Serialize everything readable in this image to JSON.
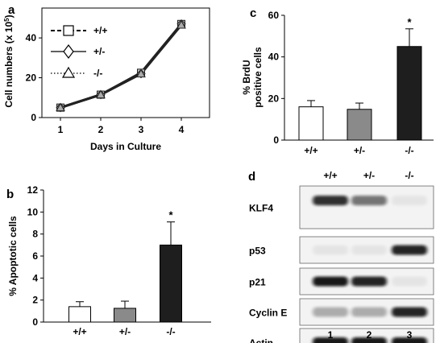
{
  "chart_data": [
    {
      "panel": "a",
      "type": "line",
      "xlabel": "Days in Culture",
      "ylabel": "Cell numbers (x 10",
      "ylabel_sup": "5",
      "ylabel_end": ")",
      "x": [
        1,
        2,
        3,
        4
      ],
      "ylim": [
        0,
        55
      ],
      "yticks": [
        0,
        20,
        40
      ],
      "series": [
        {
          "name": "+/+",
          "marker": "square",
          "dash": "dashed",
          "values": [
            5,
            11.5,
            22.5,
            47
          ]
        },
        {
          "name": "+/-",
          "marker": "diamond",
          "dash": "solid",
          "values": [
            5,
            11.5,
            22,
            47
          ]
        },
        {
          "name": "-/-",
          "marker": "triangle",
          "dash": "dotted",
          "values": [
            5,
            11.5,
            22,
            46.5
          ]
        }
      ]
    },
    {
      "panel": "b",
      "type": "bar",
      "ylabel": "% Apoptotic cells",
      "categories": [
        "+/+",
        "+/-",
        "-/-"
      ],
      "values": [
        1.4,
        1.25,
        7.0
      ],
      "errors": [
        0.45,
        0.65,
        2.1
      ],
      "colors": [
        "#ffffff",
        "#8a8a8a",
        "#1e1e1e"
      ],
      "significance": [
        "",
        "",
        "*"
      ],
      "ylim": [
        0,
        12
      ],
      "yticks": [
        0,
        2,
        4,
        6,
        8,
        10,
        12
      ]
    },
    {
      "panel": "c",
      "type": "bar",
      "ylabel": "% BrdU",
      "ylabel_line2": "positive cells",
      "categories": [
        "+/+",
        "+/-",
        "-/-"
      ],
      "values": [
        16,
        14.8,
        45
      ],
      "errors": [
        3,
        3,
        8.5
      ],
      "colors": [
        "#ffffff",
        "#8a8a8a",
        "#1e1e1e"
      ],
      "significance": [
        "",
        "",
        "*"
      ],
      "ylim": [
        0,
        60
      ],
      "yticks": [
        0,
        20,
        40,
        60
      ]
    }
  ],
  "blot": {
    "panel": "d",
    "genotypes": [
      "+/+",
      "+/-",
      "-/-"
    ],
    "lanes": [
      "1",
      "2",
      "3"
    ],
    "rows": [
      {
        "label": "KLF4",
        "intensity": [
          0.85,
          0.55,
          0.0
        ]
      },
      {
        "label": "p53",
        "intensity": [
          0.05,
          0.05,
          0.9
        ]
      },
      {
        "label": "p21",
        "intensity": [
          0.95,
          0.9,
          0.0
        ]
      },
      {
        "label": "Cyclin E",
        "intensity": [
          0.3,
          0.3,
          0.9
        ]
      },
      {
        "label": "Actin",
        "intensity": [
          0.95,
          0.95,
          0.95
        ]
      }
    ]
  }
}
